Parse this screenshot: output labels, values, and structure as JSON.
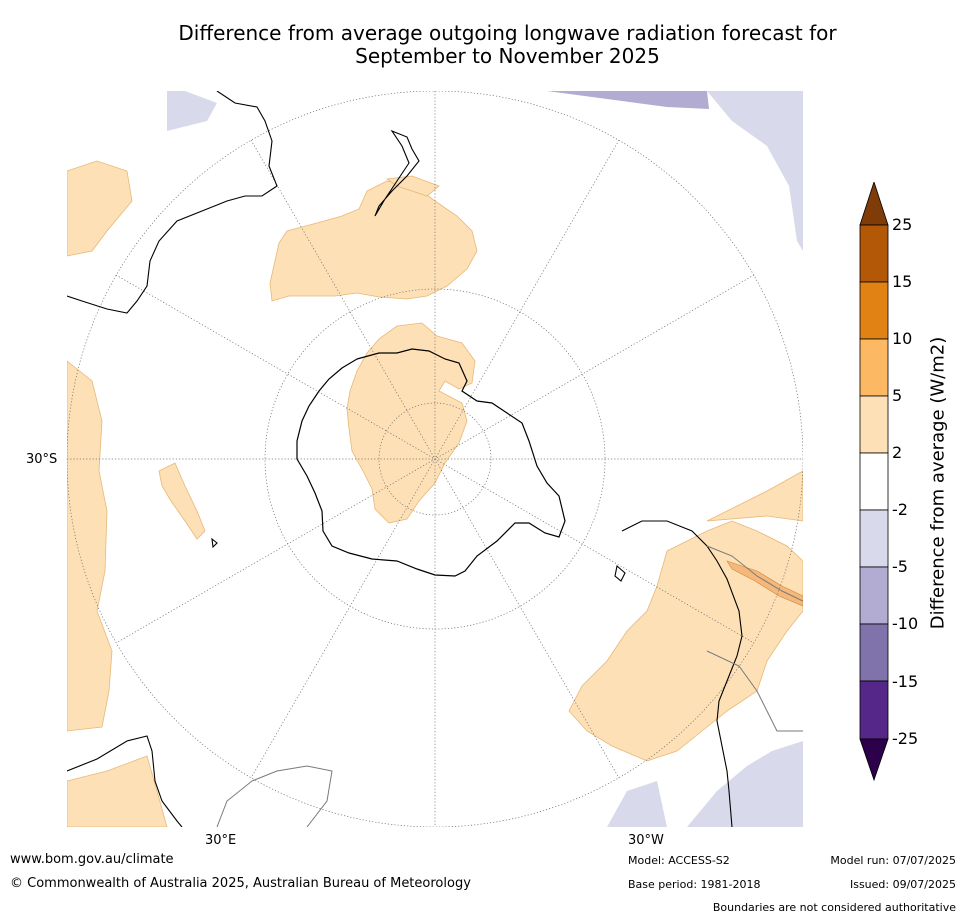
{
  "title": {
    "line1": "Difference from average outgoing longwave radiation forecast for",
    "line2": "September to November 2025"
  },
  "map": {
    "projection": "south polar stereographic",
    "graticule_labels": {
      "lat": "30°S",
      "lon_left": "30°E",
      "lon_right": "30°W"
    },
    "colors": {
      "land_outline": "#000000",
      "border_outline": "#7a7a7a",
      "positive_anomaly": "#fde0b6",
      "negative_anomaly": "#d8d9ea",
      "strong_positive": "#f6b77a"
    }
  },
  "colorbar": {
    "title": "Difference from average (W/m2)",
    "ticks": [
      "25",
      "15",
      "10",
      "5",
      "2",
      "-2",
      "-5",
      "-10",
      "-15",
      "-25"
    ],
    "bins": [
      {
        "range": ">25",
        "color": "#7f3b08"
      },
      {
        "range": "15 to 25",
        "color": "#b35806"
      },
      {
        "range": "10 to 15",
        "color": "#e08214"
      },
      {
        "range": "5 to 10",
        "color": "#fdb863"
      },
      {
        "range": "2 to 5",
        "color": "#fee0b6"
      },
      {
        "range": "-2 to 2",
        "color": "#ffffff"
      },
      {
        "range": "-5 to -2",
        "color": "#d8daeb"
      },
      {
        "range": "-10 to -5",
        "color": "#b2abd2"
      },
      {
        "range": "-15 to -10",
        "color": "#8073ac"
      },
      {
        "range": "-25 to -15",
        "color": "#542788"
      },
      {
        "range": "<-25",
        "color": "#2d004b"
      }
    ]
  },
  "footer": {
    "website": "www.bom.gov.au/climate",
    "copyright": "© Commonwealth of Australia 2025, Australian Bureau of Meteorology",
    "model": "Model: ACCESS-S2",
    "base_period": "Base period: 1981-2018",
    "model_run": "Model run: 07/07/2025",
    "issued": "Issued: 09/07/2025",
    "disclaimer": "Boundaries are not considered authoritative"
  }
}
